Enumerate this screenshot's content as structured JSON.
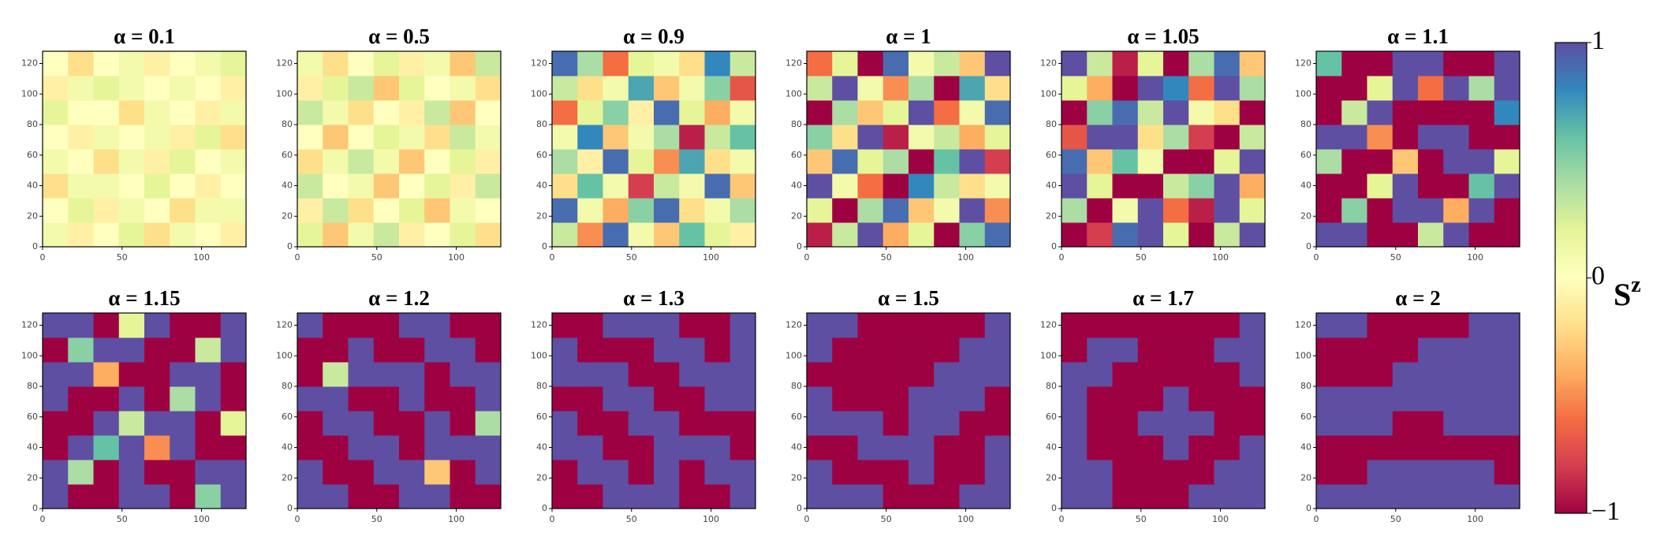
{
  "chart_data": [
    {
      "type": "heatmap",
      "title": "α = 0.1",
      "xlim": [
        0,
        128
      ],
      "ylim": [
        0,
        128
      ],
      "xticks": [
        0,
        50,
        100
      ],
      "yticks": [
        0,
        20,
        40,
        60,
        80,
        100,
        120
      ],
      "z": [
        [
          0.1,
          -0.1,
          0,
          0.2,
          -0.2,
          0.1,
          0,
          -0.1
        ],
        [
          0,
          0.2,
          -0.1,
          0.1,
          0,
          -0.2,
          0.1,
          0.1
        ],
        [
          -0.2,
          0.1,
          0.1,
          0,
          0.2,
          0,
          -0.1,
          0
        ],
        [
          0.1,
          0,
          -0.2,
          0.1,
          -0.1,
          0.2,
          0,
          0.1
        ],
        [
          0,
          -0.1,
          0.1,
          0,
          0.1,
          -0.1,
          0.2,
          -0.2
        ],
        [
          0.2,
          0,
          0,
          -0.2,
          0.1,
          0,
          -0.1,
          0.1
        ],
        [
          -0.1,
          0.1,
          0.2,
          0.1,
          0,
          0.1,
          0,
          -0.1
        ],
        [
          0,
          -0.2,
          0,
          0.1,
          -0.1,
          0,
          0.1,
          0.2
        ]
      ]
    },
    {
      "type": "heatmap",
      "title": "α = 0.5",
      "xlim": [
        0,
        128
      ],
      "ylim": [
        0,
        128
      ],
      "xticks": [
        0,
        50,
        100
      ],
      "yticks": [
        0,
        20,
        40,
        60,
        80,
        100,
        120
      ],
      "z": [
        [
          0.2,
          -0.3,
          0.1,
          0.3,
          -0.1,
          0,
          0.2,
          -0.2
        ],
        [
          -0.1,
          0.3,
          -0.2,
          0,
          0.2,
          -0.3,
          0.1,
          0
        ],
        [
          0.3,
          0,
          0.1,
          -0.3,
          0,
          0.2,
          -0.1,
          0.3
        ],
        [
          -0.2,
          0.1,
          0.3,
          0.1,
          -0.3,
          0,
          0.2,
          -0.1
        ],
        [
          0,
          -0.3,
          0,
          0.2,
          0.1,
          -0.2,
          0.3,
          0.1
        ],
        [
          0.3,
          0.1,
          -0.2,
          0,
          -0.1,
          0.3,
          -0.3,
          0
        ],
        [
          -0.1,
          0.2,
          0.3,
          -0.3,
          0.2,
          0,
          0.1,
          -0.2
        ],
        [
          0.1,
          -0.2,
          0,
          0.2,
          -0.1,
          0.1,
          -0.3,
          0.3
        ]
      ]
    },
    {
      "type": "heatmap",
      "title": "α = 0.9",
      "xlim": [
        0,
        128
      ],
      "ylim": [
        0,
        128
      ],
      "xticks": [
        0,
        50,
        100
      ],
      "yticks": [
        0,
        20,
        40,
        60,
        80,
        100,
        120
      ],
      "z": [
        [
          0.3,
          -0.5,
          0.9,
          0.1,
          -0.3,
          0.6,
          0.2,
          -0.1
        ],
        [
          0.9,
          0.1,
          -0.4,
          0.5,
          0.9,
          -0.2,
          0.1,
          0.4
        ],
        [
          -0.2,
          0.6,
          0.1,
          -0.8,
          0.3,
          0.1,
          0.9,
          -0.3
        ],
        [
          0.4,
          -0.1,
          0.9,
          0.2,
          -0.5,
          0.7,
          -0.2,
          0.1
        ],
        [
          0.1,
          0.8,
          -0.3,
          0.1,
          0.4,
          -0.9,
          0.3,
          0.6
        ],
        [
          -0.6,
          0.2,
          0.5,
          -0.1,
          0.9,
          0.2,
          -0.4,
          0.1
        ],
        [
          0.3,
          -0.2,
          0.1,
          0.7,
          -0.3,
          0.1,
          0.5,
          -0.7
        ],
        [
          0.9,
          0.4,
          -0.6,
          0.2,
          0.1,
          -0.2,
          0.8,
          0.3
        ]
      ]
    },
    {
      "type": "heatmap",
      "title": "α = 1",
      "xlim": [
        0,
        128
      ],
      "ylim": [
        0,
        128
      ],
      "xticks": [
        0,
        50,
        100
      ],
      "yticks": [
        0,
        20,
        40,
        60,
        80,
        100,
        120
      ],
      "z": [
        [
          -0.9,
          0.3,
          1,
          -0.4,
          0.2,
          -1,
          0.5,
          0.9
        ],
        [
          0.2,
          -1,
          0.4,
          0.9,
          -0.3,
          0.1,
          1,
          -0.5
        ],
        [
          1,
          0.1,
          -0.6,
          -1,
          0.8,
          0.3,
          -0.2,
          0.1
        ],
        [
          -0.3,
          0.9,
          0.2,
          0.4,
          -1,
          0.6,
          1,
          -0.8
        ],
        [
          0.5,
          -0.2,
          1,
          -0.9,
          0.1,
          0.3,
          -0.4,
          0.2
        ],
        [
          -1,
          0.4,
          -0.3,
          0.2,
          1,
          -0.6,
          0.1,
          0.9
        ],
        [
          0.3,
          1,
          0.1,
          -0.5,
          0.4,
          -1,
          0.7,
          -0.2
        ],
        [
          -0.6,
          0.2,
          -1,
          0.9,
          0.1,
          0.3,
          -0.3,
          1
        ]
      ]
    },
    {
      "type": "heatmap",
      "title": "α = 1.05",
      "xlim": [
        0,
        128
      ],
      "ylim": [
        0,
        128
      ],
      "xticks": [
        0,
        50,
        100
      ],
      "yticks": [
        0,
        20,
        40,
        60,
        80,
        100,
        120
      ],
      "z": [
        [
          -1,
          -0.8,
          0.9,
          1,
          0.2,
          -1,
          0.3,
          1
        ],
        [
          0.4,
          -1,
          0.1,
          1,
          -0.6,
          -0.9,
          1,
          0.2
        ],
        [
          1,
          0.2,
          -1,
          -1,
          0.3,
          0.5,
          1,
          -0.4
        ],
        [
          0.9,
          -0.3,
          0.6,
          0.1,
          -1,
          -1,
          0.2,
          1
        ],
        [
          -0.7,
          1,
          1,
          -0.2,
          0.4,
          -0.8,
          -1,
          0.3
        ],
        [
          -1,
          0.5,
          0.9,
          0.3,
          1,
          0.1,
          -0.2,
          -1
        ],
        [
          0.2,
          -0.4,
          -1,
          1,
          0.8,
          -0.6,
          1,
          0.4
        ],
        [
          1,
          0.3,
          -0.9,
          0.2,
          -1,
          0.4,
          0.9,
          -0.3
        ]
      ]
    },
    {
      "type": "heatmap",
      "title": "α = 1.1",
      "xlim": [
        0,
        128
      ],
      "ylim": [
        0,
        128
      ],
      "xticks": [
        0,
        50,
        100
      ],
      "yticks": [
        0,
        20,
        40,
        60,
        80,
        100,
        120
      ],
      "z": [
        [
          1,
          1,
          -1,
          -1,
          0.3,
          1,
          -1,
          -1
        ],
        [
          -1,
          0.5,
          -1,
          1,
          1,
          -0.4,
          1,
          -1
        ],
        [
          -1,
          -1,
          0.2,
          1,
          -1,
          -1,
          0.6,
          1
        ],
        [
          0.4,
          -1,
          -1,
          -0.3,
          -1,
          1,
          1,
          0.2
        ],
        [
          1,
          1,
          -0.5,
          -1,
          1,
          1,
          -1,
          -1
        ],
        [
          -1,
          0.3,
          1,
          -1,
          -1,
          -1,
          -1,
          0.8
        ],
        [
          -1,
          -1,
          0.2,
          1,
          -0.6,
          1,
          0.4,
          1
        ],
        [
          0.6,
          -1,
          -1,
          1,
          1,
          -1,
          -1,
          1
        ]
      ]
    },
    {
      "type": "heatmap",
      "title": "α = 1.15",
      "xlim": [
        0,
        128
      ],
      "ylim": [
        0,
        128
      ],
      "xticks": [
        0,
        50,
        100
      ],
      "yticks": [
        0,
        20,
        40,
        60,
        80,
        100,
        120
      ],
      "z": [
        [
          1,
          -1,
          -1,
          1,
          1,
          -1,
          0.5,
          1
        ],
        [
          1,
          0.4,
          -1,
          1,
          -1,
          -1,
          1,
          1
        ],
        [
          -1,
          1,
          0.6,
          1,
          -0.5,
          1,
          -1,
          -1
        ],
        [
          -1,
          -1,
          1,
          0.3,
          1,
          1,
          -1,
          0.2
        ],
        [
          1,
          -1,
          -1,
          1,
          -1,
          0.4,
          1,
          -1
        ],
        [
          1,
          1,
          -0.4,
          -1,
          -1,
          1,
          1,
          -1
        ],
        [
          -1,
          0.5,
          1,
          1,
          -1,
          -1,
          0.3,
          1
        ],
        [
          1,
          1,
          -1,
          0.2,
          1,
          -1,
          -1,
          1
        ]
      ]
    },
    {
      "type": "heatmap",
      "title": "α = 1.2",
      "xlim": [
        0,
        128
      ],
      "ylim": [
        0,
        128
      ],
      "xticks": [
        0,
        50,
        100
      ],
      "yticks": [
        0,
        20,
        40,
        60,
        80,
        100,
        120
      ],
      "z": [
        [
          1,
          1,
          -1,
          -1,
          1,
          1,
          -1,
          -1
        ],
        [
          1,
          -1,
          -1,
          1,
          1,
          -0.3,
          -1,
          1
        ],
        [
          -1,
          -1,
          1,
          1,
          -1,
          1,
          1,
          1
        ],
        [
          -1,
          1,
          1,
          -1,
          -1,
          1,
          -1,
          0.4
        ],
        [
          1,
          1,
          -1,
          -1,
          1,
          -1,
          -1,
          1
        ],
        [
          -1,
          0.3,
          1,
          1,
          1,
          -1,
          1,
          1
        ],
        [
          -1,
          -1,
          1,
          -1,
          -1,
          1,
          1,
          -1
        ],
        [
          1,
          -1,
          -1,
          -1,
          1,
          1,
          -1,
          -1
        ]
      ]
    },
    {
      "type": "heatmap",
      "title": "α = 1.3",
      "xlim": [
        0,
        128
      ],
      "ylim": [
        0,
        128
      ],
      "xticks": [
        0,
        50,
        100
      ],
      "yticks": [
        0,
        20,
        40,
        60,
        80,
        100,
        120
      ],
      "z": [
        [
          -1,
          -1,
          1,
          1,
          1,
          -1,
          -1,
          1
        ],
        [
          -1,
          1,
          1,
          -1,
          1,
          -1,
          1,
          1
        ],
        [
          1,
          1,
          -1,
          -1,
          1,
          1,
          1,
          -1
        ],
        [
          1,
          -1,
          -1,
          1,
          1,
          -1,
          -1,
          -1
        ],
        [
          -1,
          -1,
          1,
          1,
          -1,
          -1,
          1,
          1
        ],
        [
          1,
          1,
          1,
          -1,
          -1,
          1,
          1,
          1
        ],
        [
          1,
          -1,
          -1,
          -1,
          1,
          1,
          -1,
          1
        ],
        [
          -1,
          -1,
          1,
          1,
          1,
          -1,
          -1,
          1
        ]
      ]
    },
    {
      "type": "heatmap",
      "title": "α = 1.5",
      "xlim": [
        0,
        128
      ],
      "ylim": [
        0,
        128
      ],
      "xticks": [
        0,
        50,
        100
      ],
      "yticks": [
        0,
        20,
        40,
        60,
        80,
        100,
        120
      ],
      "z": [
        [
          1,
          1,
          1,
          -1,
          -1,
          -1,
          1,
          1
        ],
        [
          1,
          -1,
          -1,
          -1,
          1,
          -1,
          -1,
          1
        ],
        [
          -1,
          -1,
          1,
          1,
          1,
          -1,
          -1,
          1
        ],
        [
          1,
          1,
          1,
          -1,
          1,
          1,
          -1,
          -1
        ],
        [
          1,
          -1,
          -1,
          -1,
          1,
          1,
          1,
          -1
        ],
        [
          -1,
          -1,
          -1,
          -1,
          -1,
          1,
          1,
          1
        ],
        [
          1,
          -1,
          -1,
          -1,
          -1,
          -1,
          1,
          1
        ],
        [
          1,
          1,
          -1,
          -1,
          -1,
          -1,
          -1,
          1
        ]
      ]
    },
    {
      "type": "heatmap",
      "title": "α = 1.7",
      "xlim": [
        0,
        128
      ],
      "ylim": [
        0,
        128
      ],
      "xticks": [
        0,
        50,
        100
      ],
      "yticks": [
        0,
        20,
        40,
        60,
        80,
        100,
        120
      ],
      "z": [
        [
          1,
          1,
          -1,
          -1,
          -1,
          1,
          1,
          1
        ],
        [
          1,
          1,
          -1,
          -1,
          -1,
          -1,
          1,
          1
        ],
        [
          1,
          -1,
          -1,
          -1,
          1,
          -1,
          -1,
          1
        ],
        [
          1,
          -1,
          -1,
          1,
          1,
          1,
          -1,
          -1
        ],
        [
          1,
          -1,
          -1,
          -1,
          1,
          -1,
          -1,
          -1
        ],
        [
          1,
          1,
          -1,
          -1,
          -1,
          -1,
          -1,
          1
        ],
        [
          -1,
          1,
          1,
          -1,
          -1,
          -1,
          1,
          1
        ],
        [
          -1,
          -1,
          -1,
          -1,
          -1,
          -1,
          -1,
          1
        ]
      ]
    },
    {
      "type": "heatmap",
      "title": "α = 2",
      "xlim": [
        0,
        128
      ],
      "ylim": [
        0,
        128
      ],
      "xticks": [
        0,
        50,
        100
      ],
      "yticks": [
        0,
        20,
        40,
        60,
        80,
        100,
        120
      ],
      "z": [
        [
          1,
          1,
          1,
          1,
          1,
          1,
          1,
          1
        ],
        [
          -1,
          -1,
          1,
          1,
          1,
          1,
          1,
          -1
        ],
        [
          -1,
          -1,
          -1,
          -1,
          -1,
          -1,
          -1,
          -1
        ],
        [
          1,
          1,
          1,
          -1,
          -1,
          1,
          1,
          1
        ],
        [
          1,
          1,
          1,
          1,
          1,
          1,
          1,
          1
        ],
        [
          -1,
          -1,
          -1,
          1,
          1,
          1,
          1,
          1
        ],
        [
          -1,
          -1,
          -1,
          -1,
          1,
          1,
          1,
          1
        ],
        [
          1,
          1,
          -1,
          -1,
          -1,
          -1,
          1,
          1
        ]
      ]
    },
    {
      "type": "colorbar",
      "label": "S",
      "label_superscript": "z",
      "clim": [
        -1,
        1
      ],
      "ticks": [
        {
          "value": -1,
          "label": "−1"
        },
        0,
        1
      ],
      "colormap": [
        "#9e0142",
        "#d53e4f",
        "#f46d43",
        "#fdae61",
        "#fee08b",
        "#ffffbf",
        "#e6f598",
        "#abdda4",
        "#66c2a5",
        "#3288bd",
        "#5e4fa2"
      ]
    }
  ]
}
